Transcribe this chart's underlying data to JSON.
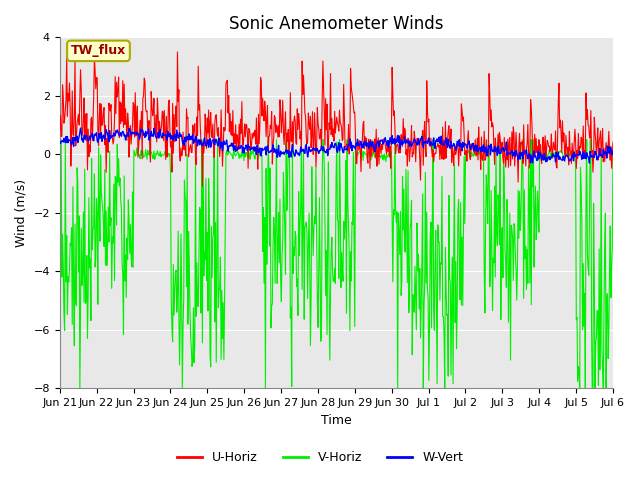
{
  "title": "Sonic Anemometer Winds",
  "xlabel": "Time",
  "ylabel": "Wind (m/s)",
  "ylim": [
    -8,
    4
  ],
  "yticks": [
    -8,
    -6,
    -4,
    -2,
    0,
    2,
    4
  ],
  "x_tick_labels": [
    "Jun 21",
    "Jun 22",
    "Jun 23",
    "Jun 24",
    "Jun 25",
    "Jun 26",
    "Jun 27",
    "Jun 28",
    "Jun 29",
    "Jun 30",
    "Jul 1",
    "Jul 2",
    "Jul 3",
    "Jul 4",
    "Jul 5",
    "Jul 6"
  ],
  "fig_bg_color": "#ffffff",
  "plot_bg_color": "#e8e8e8",
  "legend_label": "TW_flux",
  "series": {
    "U_Horiz": {
      "color": "#ff0000",
      "label": "U-Horiz"
    },
    "V_Horiz": {
      "color": "#00ee00",
      "label": "V-Horiz"
    },
    "W_Vert": {
      "color": "#0000ff",
      "label": "W-Vert"
    }
  },
  "grid_color": "#ffffff",
  "title_fontsize": 12,
  "label_fontsize": 9,
  "tick_fontsize": 8
}
